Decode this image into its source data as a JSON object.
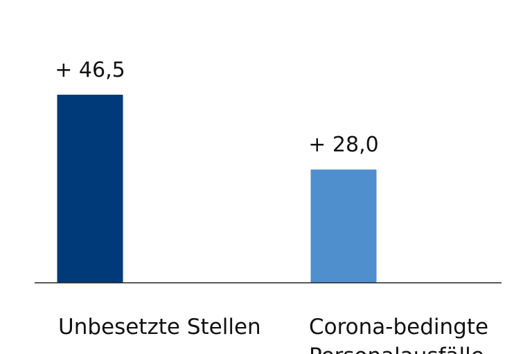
{
  "chart_data": {
    "type": "bar",
    "categories": [
      "Unbesetzte Stellen",
      "Corona-bedingte Personalausfälle"
    ],
    "values": [
      46.5,
      28.0
    ],
    "data_labels": [
      "+ 46,5",
      "+ 28,0"
    ],
    "colors": [
      "#003a78",
      "#4f8fcd"
    ],
    "title": "",
    "xlabel": "",
    "ylabel": "",
    "ylim": [
      0,
      50
    ],
    "grid": false,
    "legend": "none"
  }
}
